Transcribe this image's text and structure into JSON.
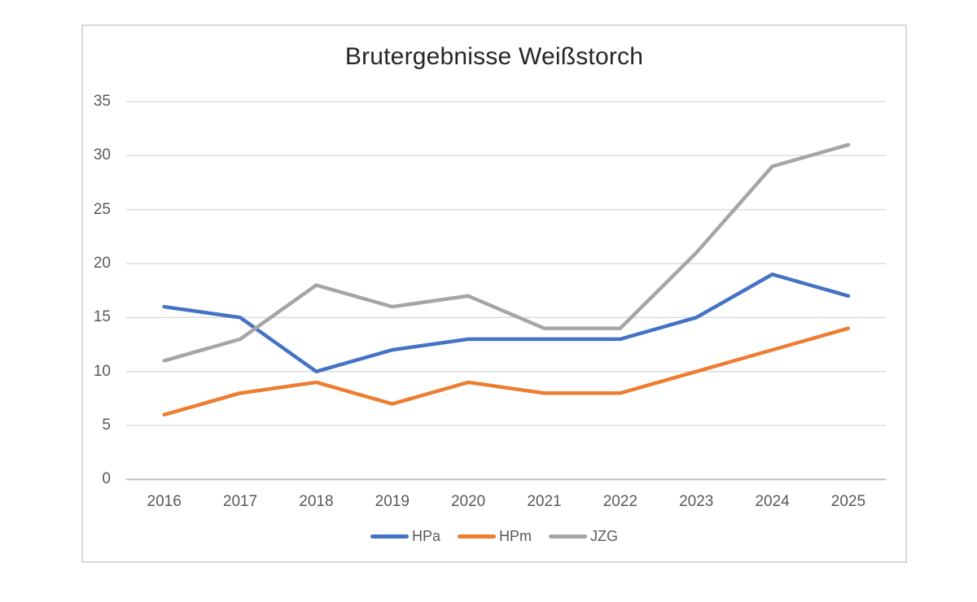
{
  "chart_data": {
    "type": "line",
    "title": "Brutergebnisse Weißstorch",
    "categories": [
      "2016",
      "2017",
      "2018",
      "2019",
      "2020",
      "2021",
      "2022",
      "2023",
      "2024",
      "2025"
    ],
    "series": [
      {
        "name": "HPa",
        "color": "#4472C4",
        "values": [
          16,
          15,
          10,
          12,
          13,
          13,
          13,
          15,
          19,
          17
        ]
      },
      {
        "name": "HPm",
        "color": "#ED7D31",
        "values": [
          6,
          8,
          9,
          7,
          9,
          8,
          8,
          10,
          12,
          14
        ]
      },
      {
        "name": "JZG",
        "color": "#A5A5A5",
        "values": [
          11,
          13,
          18,
          16,
          17,
          14,
          14,
          21,
          29,
          31
        ]
      }
    ],
    "yticks": [
      0,
      5,
      10,
      15,
      20,
      25,
      30,
      35
    ],
    "ylim": [
      0,
      35
    ],
    "xlabel": "",
    "ylabel": "",
    "grid": true,
    "legend_position": "bottom"
  },
  "colors": {
    "background": "#FFFFFF",
    "chart_border": "#D9D9D9",
    "gridline": "#D9D9D9",
    "axis_line": "#BFBFBF",
    "tick_label": "#595959",
    "title_text": "#262626",
    "legend_text": "#595959"
  }
}
